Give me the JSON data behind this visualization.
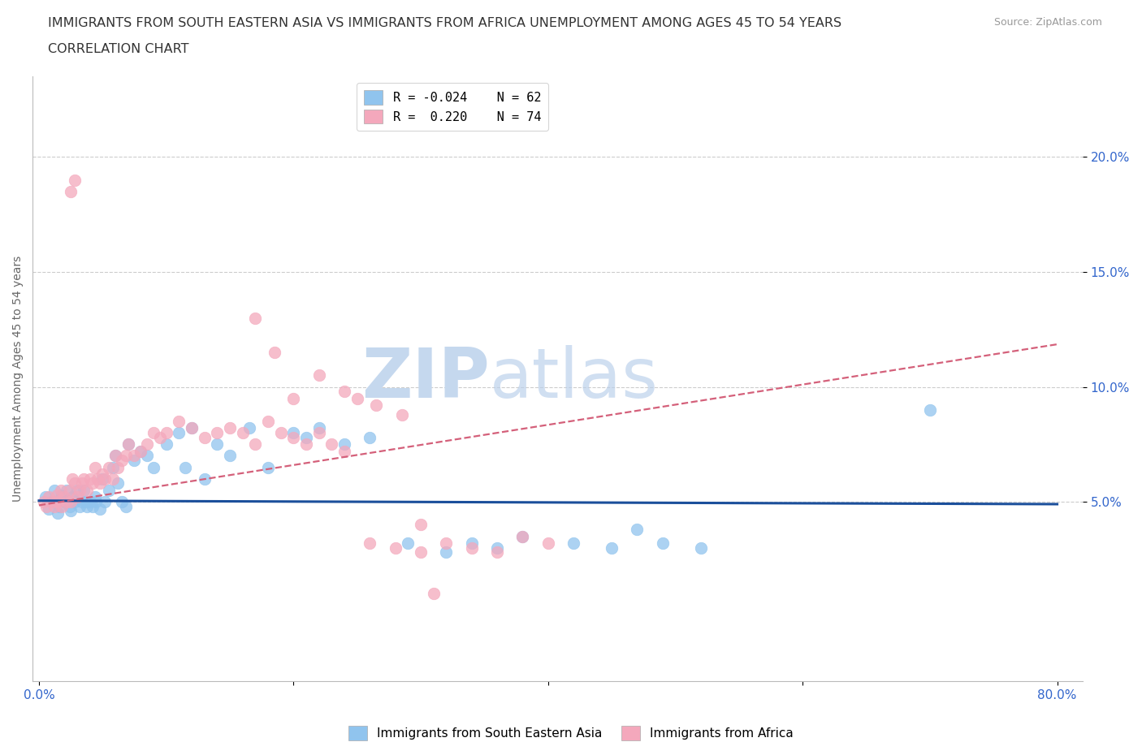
{
  "title_line1": "IMMIGRANTS FROM SOUTH EASTERN ASIA VS IMMIGRANTS FROM AFRICA UNEMPLOYMENT AMONG AGES 45 TO 54 YEARS",
  "title_line2": "CORRELATION CHART",
  "source_text": "Source: ZipAtlas.com",
  "ylabel": "Unemployment Among Ages 45 to 54 years",
  "xlim": [
    -0.005,
    0.82
  ],
  "ylim": [
    -0.028,
    0.235
  ],
  "ytick_positions": [
    0.05,
    0.1,
    0.15,
    0.2
  ],
  "ytick_labels": [
    "5.0%",
    "10.0%",
    "15.0%",
    "20.0%"
  ],
  "xtick_positions": [
    0.0,
    0.2,
    0.4,
    0.6,
    0.8
  ],
  "xtick_labels": [
    "0.0%",
    "",
    "",
    "",
    "80.0%"
  ],
  "color_asia": "#90C4EE",
  "color_africa": "#F4A8BC",
  "color_asia_line": "#1B4F9B",
  "color_africa_line": "#D4607A",
  "watermark_zip": "ZIP",
  "watermark_atlas": "atlas",
  "grid_color": "#CCCCCC",
  "blue_trend_x": [
    0.0,
    0.8
  ],
  "blue_trend_y": [
    0.0505,
    0.049
  ],
  "pink_trend_x": [
    0.0,
    0.8
  ],
  "pink_trend_y": [
    0.0485,
    0.1185
  ],
  "label_asia": "Immigrants from South Eastern Asia",
  "label_africa": "Immigrants from Africa",
  "title_fontsize": 11.5,
  "tick_fontsize": 11,
  "legend_fontsize": 11,
  "source_fontsize": 9,
  "tick_color": "#3366CC",
  "title_color": "#333333",
  "ylabel_color": "#666666",
  "blue_x": [
    0.005,
    0.008,
    0.01,
    0.012,
    0.015,
    0.016,
    0.018,
    0.02,
    0.022,
    0.024,
    0.025,
    0.026,
    0.028,
    0.03,
    0.032,
    0.034,
    0.035,
    0.037,
    0.038,
    0.04,
    0.042,
    0.044,
    0.045,
    0.048,
    0.05,
    0.052,
    0.055,
    0.058,
    0.06,
    0.062,
    0.065,
    0.068,
    0.07,
    0.075,
    0.08,
    0.085,
    0.09,
    0.1,
    0.11,
    0.115,
    0.12,
    0.13,
    0.14,
    0.15,
    0.165,
    0.18,
    0.2,
    0.21,
    0.22,
    0.24,
    0.26,
    0.29,
    0.32,
    0.34,
    0.36,
    0.38,
    0.42,
    0.45,
    0.47,
    0.49,
    0.52,
    0.7
  ],
  "blue_y": [
    0.052,
    0.047,
    0.05,
    0.055,
    0.045,
    0.048,
    0.053,
    0.05,
    0.055,
    0.048,
    0.046,
    0.052,
    0.05,
    0.055,
    0.048,
    0.05,
    0.055,
    0.05,
    0.048,
    0.05,
    0.048,
    0.052,
    0.05,
    0.047,
    0.06,
    0.05,
    0.055,
    0.065,
    0.07,
    0.058,
    0.05,
    0.048,
    0.075,
    0.068,
    0.072,
    0.07,
    0.065,
    0.075,
    0.08,
    0.065,
    0.082,
    0.06,
    0.075,
    0.07,
    0.082,
    0.065,
    0.08,
    0.078,
    0.082,
    0.075,
    0.078,
    0.032,
    0.028,
    0.032,
    0.03,
    0.035,
    0.032,
    0.03,
    0.038,
    0.032,
    0.03,
    0.09
  ],
  "pink_x": [
    0.004,
    0.006,
    0.008,
    0.01,
    0.012,
    0.014,
    0.015,
    0.017,
    0.018,
    0.02,
    0.022,
    0.024,
    0.025,
    0.026,
    0.028,
    0.03,
    0.032,
    0.034,
    0.035,
    0.038,
    0.04,
    0.042,
    0.044,
    0.046,
    0.048,
    0.05,
    0.052,
    0.055,
    0.058,
    0.06,
    0.062,
    0.065,
    0.068,
    0.07,
    0.075,
    0.08,
    0.085,
    0.09,
    0.095,
    0.1,
    0.11,
    0.12,
    0.13,
    0.14,
    0.15,
    0.16,
    0.17,
    0.18,
    0.19,
    0.2,
    0.21,
    0.22,
    0.23,
    0.24,
    0.26,
    0.28,
    0.3,
    0.32,
    0.34,
    0.36,
    0.38,
    0.4,
    0.17,
    0.185,
    0.2,
    0.22,
    0.24,
    0.265,
    0.285,
    0.25,
    0.3,
    0.028,
    0.025,
    0.31
  ],
  "pink_y": [
    0.05,
    0.048,
    0.052,
    0.05,
    0.048,
    0.053,
    0.05,
    0.055,
    0.048,
    0.052,
    0.05,
    0.055,
    0.05,
    0.06,
    0.058,
    0.052,
    0.055,
    0.058,
    0.06,
    0.055,
    0.06,
    0.058,
    0.065,
    0.06,
    0.058,
    0.062,
    0.06,
    0.065,
    0.06,
    0.07,
    0.065,
    0.068,
    0.07,
    0.075,
    0.07,
    0.072,
    0.075,
    0.08,
    0.078,
    0.08,
    0.085,
    0.082,
    0.078,
    0.08,
    0.082,
    0.08,
    0.075,
    0.085,
    0.08,
    0.078,
    0.075,
    0.08,
    0.075,
    0.072,
    0.032,
    0.03,
    0.028,
    0.032,
    0.03,
    0.028,
    0.035,
    0.032,
    0.13,
    0.115,
    0.095,
    0.105,
    0.098,
    0.092,
    0.088,
    0.095,
    0.04,
    0.19,
    0.185,
    0.01
  ]
}
